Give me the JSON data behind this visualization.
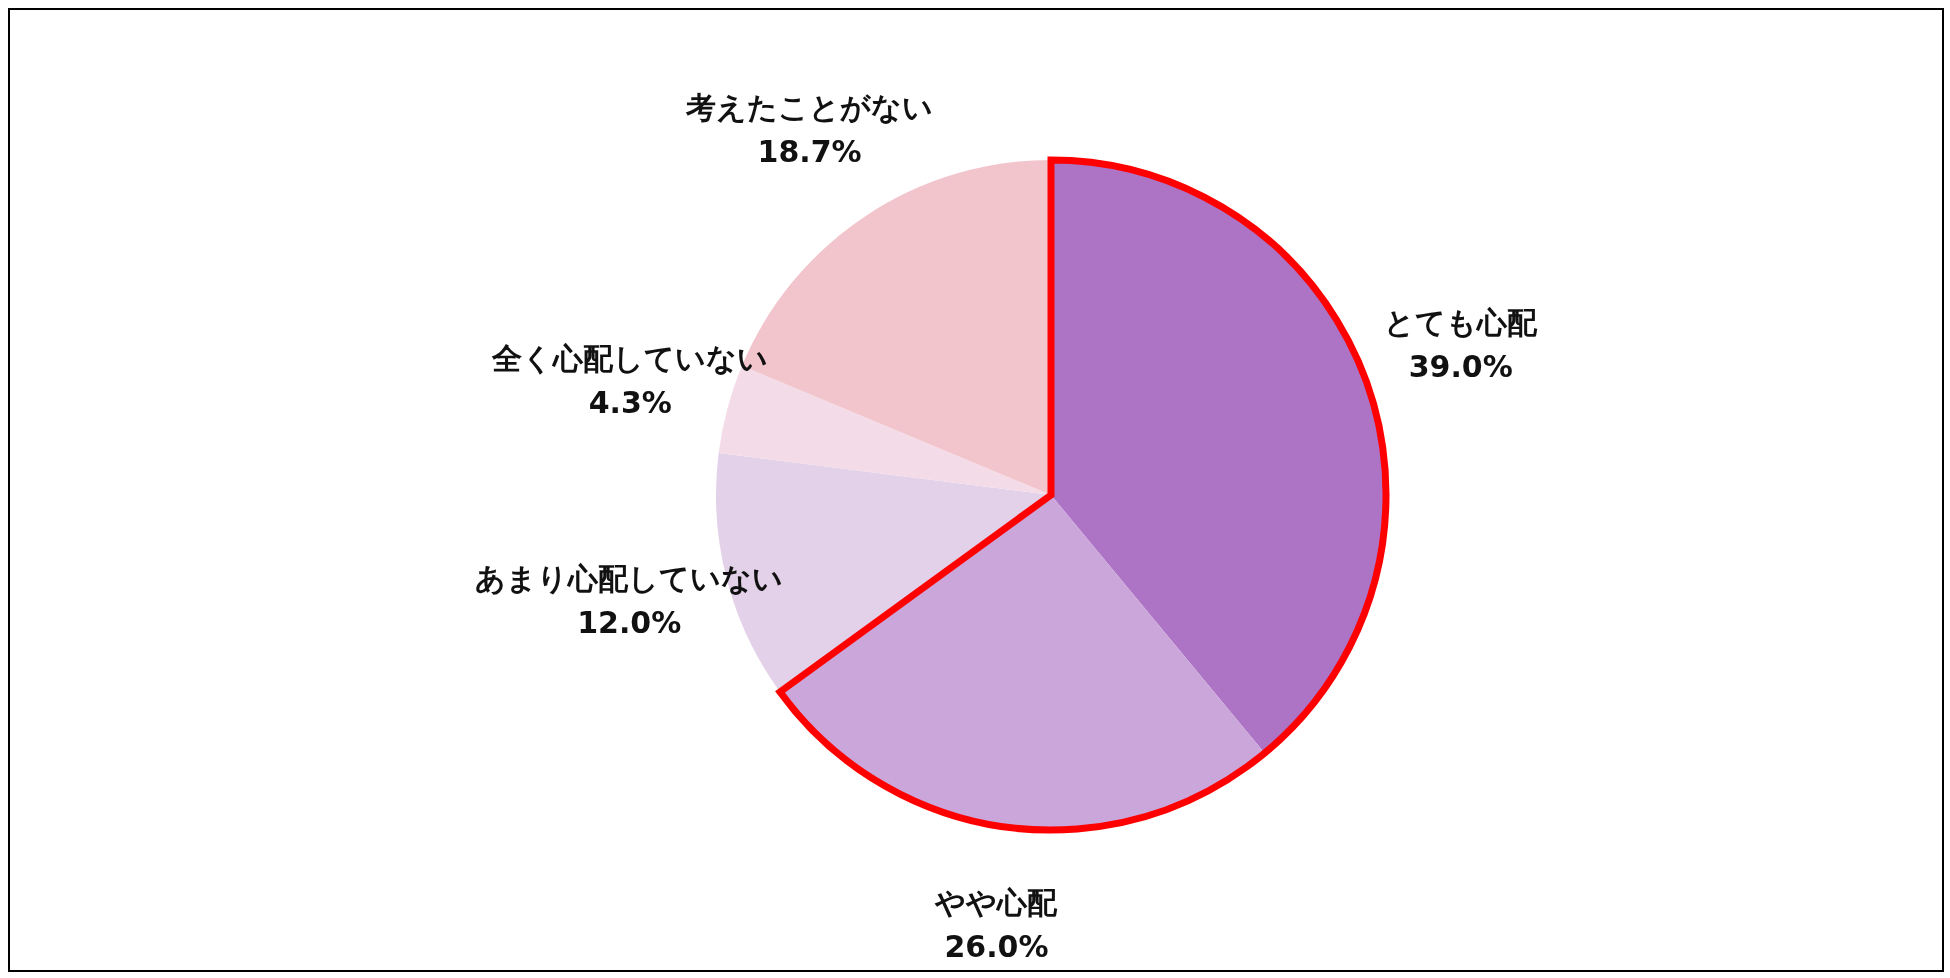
{
  "chart_data": {
    "type": "pie",
    "categories": [
      "とても心配",
      "やや心配",
      "あまり心配していない",
      "全く心配していない",
      "考えたことがない"
    ],
    "values": [
      39.0,
      26.0,
      12.0,
      4.3,
      18.7
    ],
    "colors": [
      "#ad73c4",
      "#cba6da",
      "#e2d1e8",
      "#f3dce8",
      "#f2c5cc"
    ],
    "value_labels": [
      "39.0%",
      "26.0%",
      "12.0%",
      "4.3%",
      "18.7%"
    ],
    "legend": false
  }
}
